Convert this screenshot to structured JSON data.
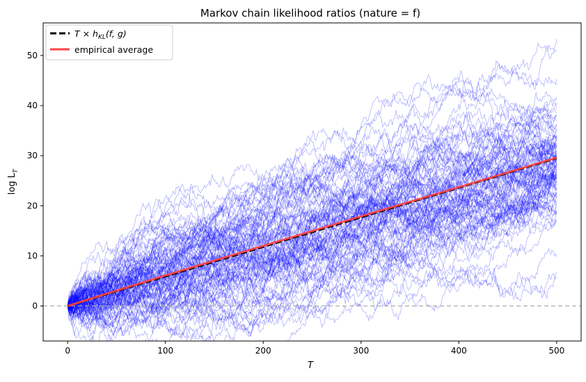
{
  "chart_data": {
    "type": "line",
    "title": "Markov chain likelihood ratios (nature = f)",
    "xlabel": "T",
    "ylabel": "log L",
    "ylabel_sub": "T",
    "xlim": [
      -25,
      525
    ],
    "ylim": [
      -7,
      56.5
    ],
    "xticks": [
      0,
      100,
      200,
      300,
      400,
      500
    ],
    "yticks": [
      0,
      10,
      20,
      30,
      40,
      50
    ],
    "grid": false,
    "legend_position": "upper-left",
    "legend": [
      {
        "label_main": "T × h",
        "label_sub": "KL",
        "label_tail": "(f, g)",
        "color": "#000000",
        "style": "dashed"
      },
      {
        "label_main": "empirical average",
        "color": "#ff4444",
        "style": "solid"
      }
    ],
    "reference_line": {
      "y": 0,
      "color": "#aaaaaa",
      "style": "dashed"
    },
    "theory_line": {
      "x": [
        0,
        500
      ],
      "y": [
        0,
        29.5
      ]
    },
    "empirical_average": {
      "x": [
        0,
        100,
        200,
        300,
        400,
        500
      ],
      "y": [
        0,
        6.1,
        12.0,
        17.9,
        23.7,
        29.6
      ]
    },
    "paths": {
      "count": 100,
      "length": 501,
      "color": "#0000ff",
      "final_values": [
        53.3,
        51.0,
        45.3,
        41.7,
        40.3,
        39.5,
        38.5,
        37.8,
        36.4,
        35.5,
        34.8,
        34.0,
        33.4,
        33.0,
        32.6,
        32.0,
        31.7,
        31.2,
        30.8,
        30.5,
        30.2,
        30.0,
        29.7,
        29.4,
        29.2,
        29.0,
        28.7,
        28.5,
        28.2,
        28.0,
        27.7,
        27.4,
        27.1,
        26.8,
        26.5,
        26.2,
        25.9,
        25.6,
        25.3,
        25.0,
        24.6,
        24.2,
        23.8,
        23.4,
        23.0,
        22.5,
        22.0,
        21.4,
        20.8,
        20.2,
        19.6,
        18.9,
        18.2,
        17.4,
        16.6,
        9.8,
        6.8,
        5.8,
        35.0,
        33.2,
        31.0,
        29.9,
        28.9,
        27.9,
        26.9,
        25.8,
        24.8,
        23.7,
        32.2,
        30.4,
        28.3,
        26.0,
        24.0,
        22.8,
        21.7,
        33.8,
        31.5,
        29.3,
        27.2,
        25.2,
        36.9,
        34.2,
        30.9,
        28.6,
        26.4,
        24.4,
        22.2,
        20.5,
        19.0,
        38.0,
        35.8,
        33.6,
        31.9,
        29.6,
        27.6,
        25.4,
        23.2,
        21.0,
        18.6,
        17.0
      ],
      "min_value": -3.8
    }
  }
}
